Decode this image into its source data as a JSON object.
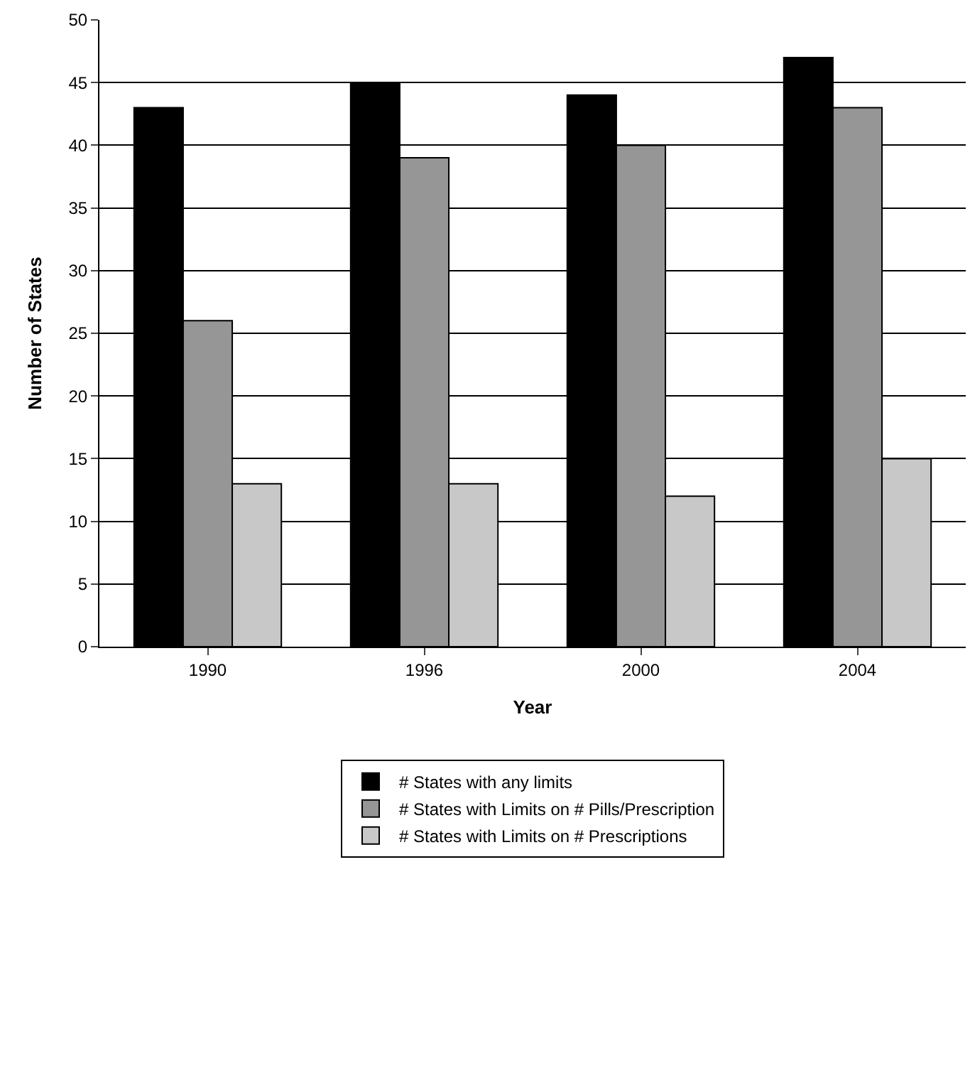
{
  "chart_data": {
    "type": "bar",
    "xlabel": "Year",
    "ylabel": "Number of States",
    "categories": [
      "1990",
      "1996",
      "2000",
      "2004"
    ],
    "series": [
      {
        "name": "# States with any limits",
        "color": "#000000",
        "values": [
          43,
          45,
          44,
          47
        ]
      },
      {
        "name": "# States with Limits on # Pills/Prescription",
        "color": "#969696",
        "values": [
          26,
          39,
          40,
          43
        ]
      },
      {
        "name": "# States with Limits on # Prescriptions",
        "color": "#c8c8c8",
        "values": [
          13,
          13,
          12,
          15
        ]
      }
    ],
    "ylim": [
      0,
      50
    ],
    "yticks": [
      0,
      5,
      10,
      15,
      20,
      25,
      30,
      35,
      40,
      45,
      50
    ],
    "grid": "y",
    "legend": "bottom"
  }
}
